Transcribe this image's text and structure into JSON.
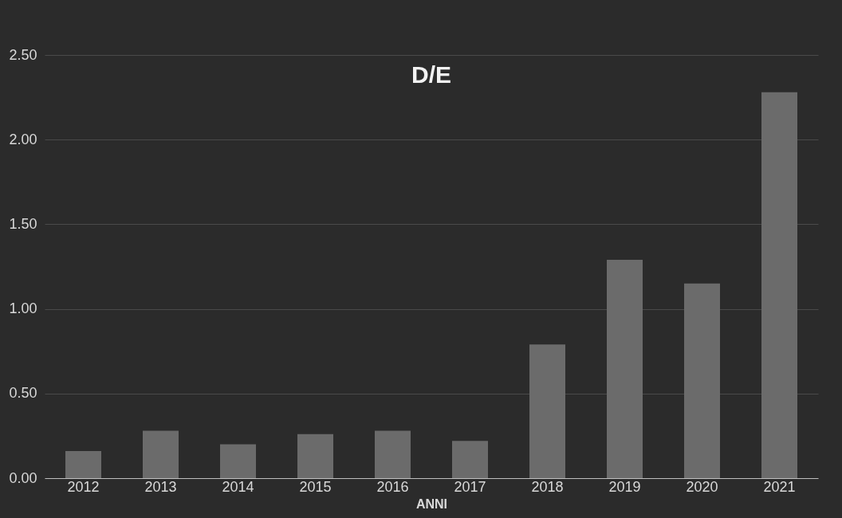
{
  "chart_data": {
    "type": "bar",
    "title": "D/E",
    "xlabel": "ANNI",
    "categories": [
      "2012",
      "2013",
      "2014",
      "2015",
      "2016",
      "2017",
      "2018",
      "2019",
      "2020",
      "2021"
    ],
    "values": [
      0.16,
      0.28,
      0.2,
      0.26,
      0.28,
      0.22,
      0.79,
      1.29,
      1.15,
      2.28
    ],
    "color": "#6b6b6b",
    "ylim": [
      0,
      2.5
    ],
    "yticks": [
      {
        "value": 0,
        "label": "0.00"
      },
      {
        "value": 0.5,
        "label": "0.50"
      },
      {
        "value": 1,
        "label": "1.00"
      },
      {
        "value": 1.5,
        "label": "1.50"
      },
      {
        "value": 2,
        "label": "2.00"
      },
      {
        "value": 2.5,
        "label": "2.50"
      }
    ],
    "grid": "y"
  }
}
